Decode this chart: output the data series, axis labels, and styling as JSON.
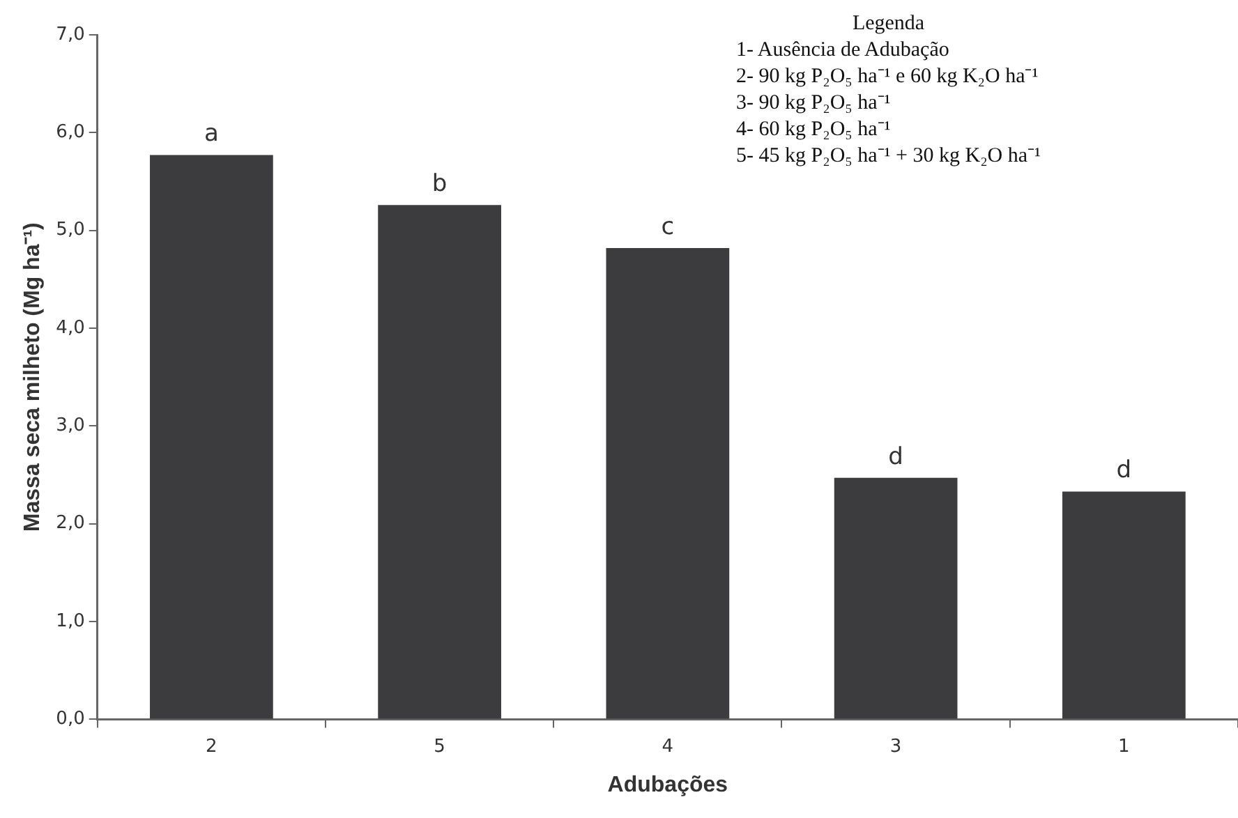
{
  "chart_data": {
    "type": "bar",
    "xlabel": "Adubações",
    "ylabel": "Massa seca milheto (Mg ha⁻¹)",
    "categories": [
      "2",
      "5",
      "4",
      "3",
      "1"
    ],
    "values": [
      5.77,
      5.26,
      4.82,
      2.47,
      2.33
    ],
    "color": "#3c3c3f",
    "ylim": [
      0,
      7
    ],
    "yticks": [
      {
        "value": 0,
        "label": "0,0"
      },
      {
        "value": 1,
        "label": "1,0"
      },
      {
        "value": 2,
        "label": "2,0"
      },
      {
        "value": 3,
        "label": "3,0"
      },
      {
        "value": 4,
        "label": "4,0"
      },
      {
        "value": 5,
        "label": "5,0"
      },
      {
        "value": 6,
        "label": "6,0"
      },
      {
        "value": 7,
        "label": "7,0"
      }
    ],
    "grid": false,
    "legend": false,
    "annotations": [
      {
        "text": "a",
        "x": "2",
        "y": 5.77
      },
      {
        "text": "b",
        "x": "5",
        "y": 5.26
      },
      {
        "text": "c",
        "x": "4",
        "y": 4.82
      },
      {
        "text": "d",
        "x": "3",
        "y": 2.47
      },
      {
        "text": "d",
        "x": "1",
        "y": 2.33
      },
      "Legenda",
      "1- Ausência de Adubação",
      "2- 90 kg P₂O₅ ha⁻¹ e 60 kg K₂O ha⁻¹",
      "3- 90 kg P₂O₅ ha⁻¹",
      "4- 60 kg P₂O₅ ha⁻¹",
      "5- 45 kg P₂O₅ ha⁻¹ + 30 kg K₂O ha⁻¹"
    ]
  }
}
